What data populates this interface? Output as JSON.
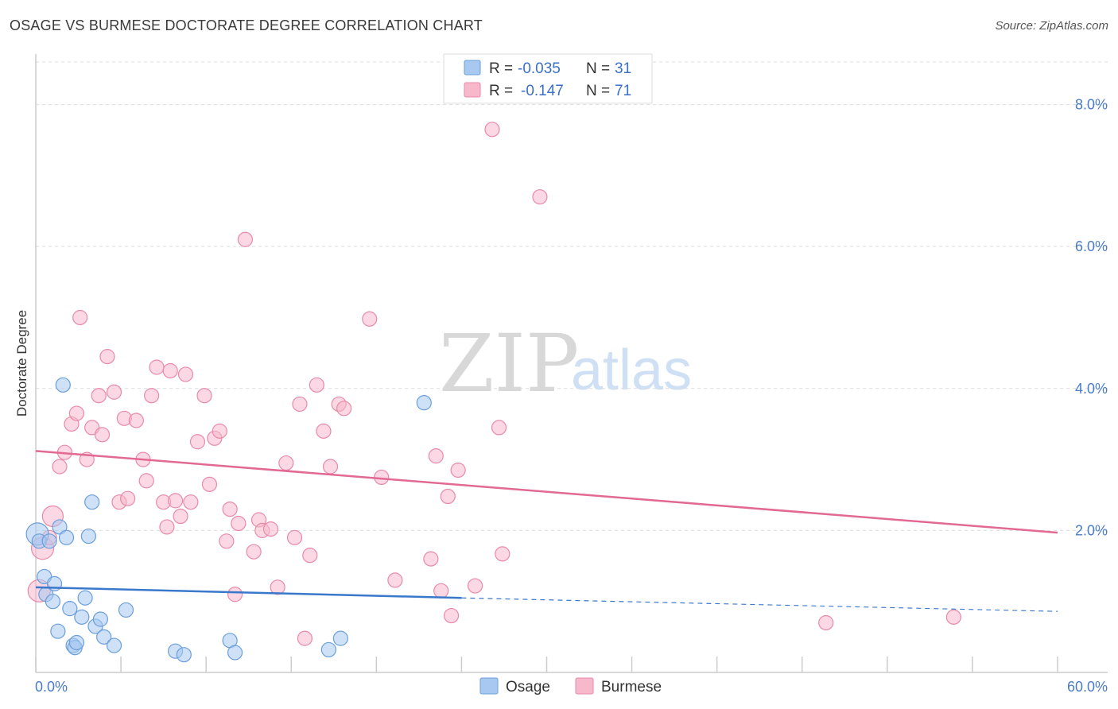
{
  "title": "OSAGE VS BURMESE DOCTORATE DEGREE CORRELATION CHART",
  "source": "Source: ZipAtlas.com",
  "watermark": {
    "zip": "ZIP",
    "atlas": "atlas"
  },
  "colors": {
    "osage_fill": "#a8c8f0",
    "osage_stroke": "#6a9fdc",
    "osage_line": "#3a78cc",
    "burmese_fill": "#f7b8cc",
    "burmese_stroke": "#e98aa8",
    "burmese_line": "#e26a92",
    "tick_text": "#4a7cc9"
  },
  "legend": {
    "rows": [
      {
        "r_label": "R = ",
        "r_value": "-0.035",
        "n_label": "N = ",
        "n_value": "31"
      },
      {
        "r_label": "R = ",
        "r_value": "-0.147",
        "n_label": "N = ",
        "n_value": "71"
      }
    ]
  },
  "chart_data": {
    "type": "scatter",
    "title": "OSAGE VS BURMESE DOCTORATE DEGREE CORRELATION CHART",
    "xlabel": "",
    "ylabel": "Doctorate Degree",
    "xlim": [
      0,
      60
    ],
    "ylim": [
      0,
      8.6
    ],
    "x_tick_labels": [
      "0.0%",
      "60.0%"
    ],
    "y_ticks": [
      2,
      4,
      6,
      8
    ],
    "y_tick_labels": [
      "2.0%",
      "4.0%",
      "6.0%",
      "8.0%"
    ],
    "grid": "horizontal dashed",
    "legend_position": "top-center",
    "series": [
      {
        "name": "Osage",
        "R": -0.035,
        "N": 31,
        "trend": {
          "x": [
            0,
            25
          ],
          "y": [
            1.2,
            1.05
          ],
          "dashed_to": [
            60,
            0.86
          ]
        },
        "points": [
          [
            0.1,
            1.95,
            14
          ],
          [
            0.2,
            1.85,
            9
          ],
          [
            0.5,
            1.35,
            9
          ],
          [
            0.6,
            1.1,
            9
          ],
          [
            0.8,
            1.85,
            9
          ],
          [
            1.0,
            1.0,
            9
          ],
          [
            1.1,
            1.25,
            9
          ],
          [
            1.3,
            0.58,
            9
          ],
          [
            1.4,
            2.05,
            9
          ],
          [
            1.6,
            4.05,
            9
          ],
          [
            1.8,
            1.9,
            9
          ],
          [
            2.0,
            0.9,
            9
          ],
          [
            2.2,
            0.38,
            9
          ],
          [
            2.3,
            0.35,
            9
          ],
          [
            2.4,
            0.42,
            9
          ],
          [
            2.7,
            0.78,
            9
          ],
          [
            2.9,
            1.05,
            9
          ],
          [
            3.1,
            1.92,
            9
          ],
          [
            3.3,
            2.4,
            9
          ],
          [
            3.5,
            0.65,
            9
          ],
          [
            3.8,
            0.75,
            9
          ],
          [
            4.0,
            0.5,
            9
          ],
          [
            4.6,
            0.38,
            9
          ],
          [
            5.3,
            0.88,
            9
          ],
          [
            8.2,
            0.3,
            9
          ],
          [
            8.7,
            0.25,
            9
          ],
          [
            11.4,
            0.45,
            9
          ],
          [
            11.7,
            0.28,
            9
          ],
          [
            17.2,
            0.32,
            9
          ],
          [
            17.9,
            0.48,
            9
          ],
          [
            22.8,
            3.8,
            9
          ]
        ]
      },
      {
        "name": "Burmese",
        "R": -0.147,
        "N": 71,
        "trend": {
          "x": [
            0,
            60
          ],
          "y": [
            3.12,
            1.97
          ]
        },
        "points": [
          [
            0.2,
            1.15,
            14
          ],
          [
            0.4,
            1.75,
            14
          ],
          [
            0.8,
            1.9,
            9
          ],
          [
            1.0,
            2.2,
            13
          ],
          [
            1.4,
            2.9,
            9
          ],
          [
            1.7,
            3.1,
            9
          ],
          [
            2.1,
            3.5,
            9
          ],
          [
            2.4,
            3.65,
            9
          ],
          [
            2.6,
            5.0,
            9
          ],
          [
            3.0,
            3.0,
            9
          ],
          [
            3.3,
            3.45,
            9
          ],
          [
            3.7,
            3.9,
            9
          ],
          [
            3.9,
            3.35,
            9
          ],
          [
            4.2,
            4.45,
            9
          ],
          [
            4.6,
            3.95,
            9
          ],
          [
            4.9,
            2.4,
            9
          ],
          [
            5.2,
            3.58,
            9
          ],
          [
            5.4,
            2.45,
            9
          ],
          [
            5.9,
            3.55,
            9
          ],
          [
            6.3,
            3.0,
            9
          ],
          [
            6.5,
            2.7,
            9
          ],
          [
            6.8,
            3.9,
            9
          ],
          [
            7.1,
            4.3,
            9
          ],
          [
            7.5,
            2.4,
            9
          ],
          [
            7.7,
            2.05,
            9
          ],
          [
            7.9,
            4.25,
            9
          ],
          [
            8.2,
            2.42,
            9
          ],
          [
            8.5,
            2.2,
            9
          ],
          [
            8.8,
            4.2,
            9
          ],
          [
            9.1,
            2.4,
            9
          ],
          [
            9.5,
            3.25,
            9
          ],
          [
            9.9,
            3.9,
            9
          ],
          [
            10.2,
            2.65,
            9
          ],
          [
            10.5,
            3.3,
            9
          ],
          [
            10.8,
            3.4,
            9
          ],
          [
            11.2,
            1.85,
            9
          ],
          [
            11.4,
            2.3,
            9
          ],
          [
            11.7,
            1.1,
            9
          ],
          [
            11.9,
            2.1,
            9
          ],
          [
            12.3,
            6.1,
            9
          ],
          [
            12.8,
            1.7,
            9
          ],
          [
            13.1,
            2.15,
            9
          ],
          [
            13.3,
            2.0,
            9
          ],
          [
            13.8,
            2.02,
            9
          ],
          [
            14.2,
            1.2,
            9
          ],
          [
            14.7,
            2.95,
            9
          ],
          [
            15.2,
            1.9,
            9
          ],
          [
            15.5,
            3.78,
            9
          ],
          [
            15.8,
            0.48,
            9
          ],
          [
            16.1,
            1.65,
            9
          ],
          [
            16.5,
            4.05,
            9
          ],
          [
            16.9,
            3.4,
            9
          ],
          [
            17.3,
            2.9,
            9
          ],
          [
            17.8,
            3.78,
            9
          ],
          [
            18.1,
            3.72,
            9
          ],
          [
            19.6,
            4.98,
            9
          ],
          [
            20.3,
            2.75,
            9
          ],
          [
            21.1,
            1.3,
            9
          ],
          [
            23.2,
            1.6,
            9
          ],
          [
            23.5,
            3.05,
            9
          ],
          [
            23.8,
            1.15,
            9
          ],
          [
            24.2,
            2.48,
            9
          ],
          [
            24.4,
            0.8,
            9
          ],
          [
            24.8,
            2.85,
            9
          ],
          [
            25.8,
            1.22,
            9
          ],
          [
            26.8,
            7.65,
            9
          ],
          [
            27.2,
            3.45,
            9
          ],
          [
            27.4,
            1.67,
            9
          ],
          [
            29.6,
            6.7,
            9
          ],
          [
            46.4,
            0.7,
            9
          ],
          [
            53.9,
            0.78,
            9
          ]
        ]
      }
    ]
  }
}
